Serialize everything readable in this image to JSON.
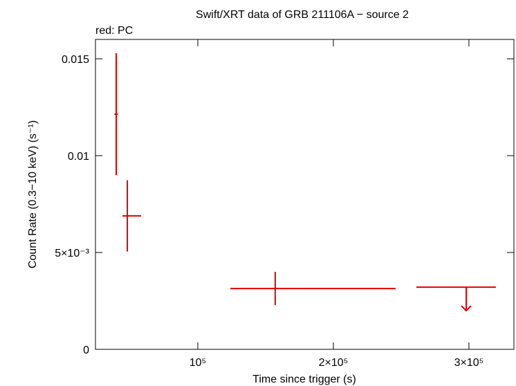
{
  "chart_data": {
    "type": "errorbar",
    "title": "Swift/XRT data of GRB 211106A − source 2",
    "subtitle": "red: PC",
    "x_label": "Time since trigger (s)",
    "y_label": "Count Rate (0.3−10 keV) (s⁻¹)",
    "color": "#e00000",
    "x": [
      39800,
      48000,
      157100
    ],
    "x_err_minus": [
      1300,
      3600,
      33100
    ],
    "x_err_plus": [
      1300,
      10200,
      88800
    ],
    "y": [
      0.01214,
      0.00689,
      0.00314
    ],
    "y_err": [
      0.00315,
      0.00184,
      0.00086
    ],
    "upper_limit": {
      "x": 298000,
      "x_err_minus": 36800,
      "x_err_plus": 21900,
      "y": 0.00321
    },
    "xlim": [
      24500,
      333200
    ],
    "xticks": [
      {
        "value": 100000,
        "label": "10⁵"
      },
      {
        "value": 200000,
        "label": "2×10⁵"
      },
      {
        "value": 300000,
        "label": "3×10⁵"
      }
    ],
    "ylim": [
      0,
      0.016
    ],
    "yticks": [
      0,
      {
        "value": 0.005,
        "label": "5×10⁻³"
      },
      0.01,
      0.015
    ]
  }
}
